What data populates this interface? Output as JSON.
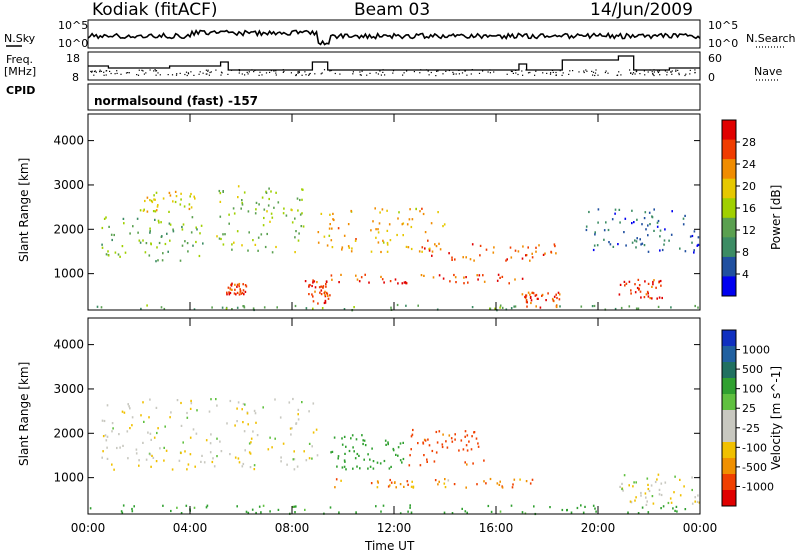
{
  "header": {
    "station": "Kodiak (fitACF)",
    "beam": "Beam 03",
    "date": "14/Jun/2009"
  },
  "aux": {
    "nsky_label": "N.Sky",
    "nsearch_label": "N.Search",
    "freq_label_1": "Freq.",
    "freq_label_2": "[MHz]",
    "nave_label": "Nave",
    "cpid_label": "CPID",
    "cpid_text": "normalsound (fast) -157",
    "noise_ticks": [
      "10^5",
      "10^0"
    ],
    "freq_ticks": [
      "18",
      "8"
    ],
    "nave_ticks": [
      "60",
      "0"
    ]
  },
  "power_colorbar": {
    "label": "Power [dB]",
    "ticks": [
      "28",
      "24",
      "20",
      "16",
      "12",
      "8",
      "4"
    ],
    "colors": [
      "#e00000",
      "#f03c00",
      "#f08c00",
      "#e6c800",
      "#a0d000",
      "#5aa050",
      "#3c8c64",
      "#2050a0",
      "#0000f0"
    ]
  },
  "velocity_colorbar": {
    "label": "Velocity [m s^-1]",
    "ticks": [
      "1000",
      "500",
      "100",
      "25",
      "-25",
      "-100",
      "-500",
      "-1000"
    ],
    "colors": [
      "#1030c0",
      "#2060a0",
      "#207060",
      "#30a030",
      "#60c040",
      "#c8c8c0",
      "#c8c8c0",
      "#f0c000",
      "#f09000",
      "#f04000",
      "#e00000"
    ]
  },
  "chart_data": [
    {
      "type": "heatmap",
      "title": "Power",
      "ylabel": "Slant Range [km]",
      "xlabel": "",
      "ylim": [
        180,
        4600
      ],
      "yticks": [
        "4000",
        "3000",
        "2000",
        "1000"
      ],
      "xticks": [
        "00:00",
        "04:00",
        "08:00",
        "12:00",
        "16:00",
        "20:00",
        "00:00"
      ],
      "colorbar_range_db": [
        0,
        30
      ],
      "features": [
        {
          "time_h": [
            0.0,
            24.0
          ],
          "range_km": [
            200,
            320
          ],
          "power_db": 10
        },
        {
          "time_h": [
            0.5,
            4.5
          ],
          "range_km": [
            1300,
            2300
          ],
          "power_db": 12
        },
        {
          "time_h": [
            2.0,
            4.2
          ],
          "range_km": [
            2400,
            2900
          ],
          "power_db": 18
        },
        {
          "time_h": [
            5.0,
            8.5
          ],
          "range_km": [
            1500,
            3000
          ],
          "power_db": 14
        },
        {
          "time_h": [
            5.4,
            6.2
          ],
          "range_km": [
            550,
            800
          ],
          "power_db": 26
        },
        {
          "time_h": [
            8.5,
            9.5
          ],
          "range_km": [
            350,
            900
          ],
          "power_db": 26
        },
        {
          "time_h": [
            9.5,
            17.5
          ],
          "range_km": [
            800,
            1000
          ],
          "power_db": 26
        },
        {
          "time_h": [
            9.0,
            14.0
          ],
          "range_km": [
            1500,
            2500
          ],
          "power_db": 20
        },
        {
          "time_h": [
            13.0,
            18.5
          ],
          "range_km": [
            1300,
            1700
          ],
          "power_db": 24
        },
        {
          "time_h": [
            17.0,
            18.5
          ],
          "range_km": [
            250,
            600
          ],
          "power_db": 24
        },
        {
          "time_h": [
            20.8,
            22.5
          ],
          "range_km": [
            450,
            900
          ],
          "power_db": 26
        },
        {
          "time_h": [
            19.5,
            24.0
          ],
          "range_km": [
            1500,
            2500
          ],
          "power_db": 6
        }
      ]
    },
    {
      "type": "heatmap",
      "title": "Velocity",
      "ylabel": "Slant Range [km]",
      "xlabel": "Time UT",
      "ylim": [
        180,
        4600
      ],
      "yticks": [
        "4000",
        "3000",
        "2000",
        "1000"
      ],
      "xticks": [
        "00:00",
        "04:00",
        "08:00",
        "12:00",
        "16:00",
        "20:00",
        "00:00"
      ],
      "colorbar_range_ms": [
        -1000,
        1000
      ],
      "features": [
        {
          "time_h": [
            0.0,
            24.0
          ],
          "range_km": [
            200,
            400
          ],
          "velocity_ms": 150
        },
        {
          "time_h": [
            0.5,
            9.0
          ],
          "range_km": [
            1200,
            2800
          ],
          "velocity_ms": 0
        },
        {
          "time_h": [
            9.5,
            12.5
          ],
          "range_km": [
            1200,
            2000
          ],
          "velocity_ms": 200
        },
        {
          "time_h": [
            12.5,
            15.5
          ],
          "range_km": [
            1300,
            2100
          ],
          "velocity_ms": -150
        },
        {
          "time_h": [
            9.5,
            17.5
          ],
          "range_km": [
            800,
            1000
          ],
          "velocity_ms": -80
        },
        {
          "time_h": [
            20.8,
            24.0
          ],
          "range_km": [
            400,
            1100
          ],
          "velocity_ms": 0
        }
      ]
    }
  ]
}
